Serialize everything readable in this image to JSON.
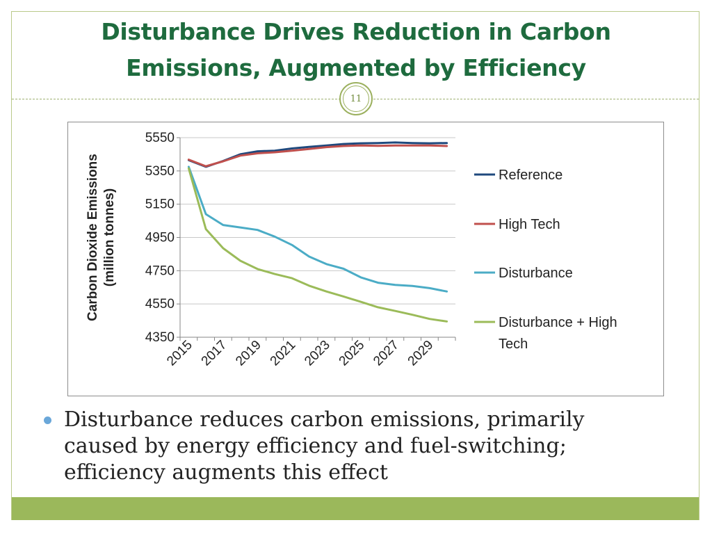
{
  "slide": {
    "title_line1": "Disturbance Drives Reduction in Carbon",
    "title_line2": "Emissions, Augmented by Efficiency",
    "slide_number": "11",
    "bullet_text": "Disturbance reduces carbon emissions, primarily caused by energy efficiency and fuel-switching; efficiency augments this effect"
  },
  "colors": {
    "title": "#1e6b3e",
    "accent": "#9bb85b",
    "bullet": "#6aa7d9"
  },
  "chart_data": {
    "type": "line",
    "title": "",
    "xlabel": "",
    "ylabel_line1": "Carbon Dioxide Emissions",
    "ylabel_line2": "(million tonnes)",
    "ylim": [
      4350,
      5550
    ],
    "yticks": [
      4350,
      4550,
      4750,
      4950,
      5150,
      5350,
      5550
    ],
    "x": [
      2015,
      2016,
      2017,
      2018,
      2019,
      2020,
      2021,
      2022,
      2023,
      2024,
      2025,
      2026,
      2027,
      2028,
      2029,
      2030
    ],
    "xtick_labels": [
      "2015",
      "2017",
      "2019",
      "2021",
      "2023",
      "2025",
      "2027",
      "2029"
    ],
    "grid": true,
    "legend_position": "right",
    "series": [
      {
        "name": "Reference",
        "color": "#1f497d",
        "values": [
          5415,
          5375,
          5410,
          5450,
          5468,
          5472,
          5485,
          5495,
          5503,
          5512,
          5516,
          5518,
          5521,
          5518,
          5516,
          5518
        ]
      },
      {
        "name": "High Tech",
        "color": "#c0504d",
        "values": [
          5418,
          5378,
          5408,
          5442,
          5456,
          5462,
          5472,
          5482,
          5493,
          5500,
          5503,
          5501,
          5503,
          5503,
          5503,
          5500
        ]
      },
      {
        "name": "Disturbance",
        "color": "#4bacc6",
        "values": [
          5375,
          5090,
          5025,
          5010,
          4995,
          4955,
          4905,
          4835,
          4790,
          4762,
          4710,
          4678,
          4665,
          4658,
          4645,
          4625
        ]
      },
      {
        "name": "Disturbance + High Tech",
        "color": "#9bbb59",
        "values": [
          5365,
          5000,
          4885,
          4810,
          4760,
          4730,
          4705,
          4660,
          4625,
          4595,
          4563,
          4530,
          4508,
          4485,
          4460,
          4445
        ]
      }
    ]
  }
}
